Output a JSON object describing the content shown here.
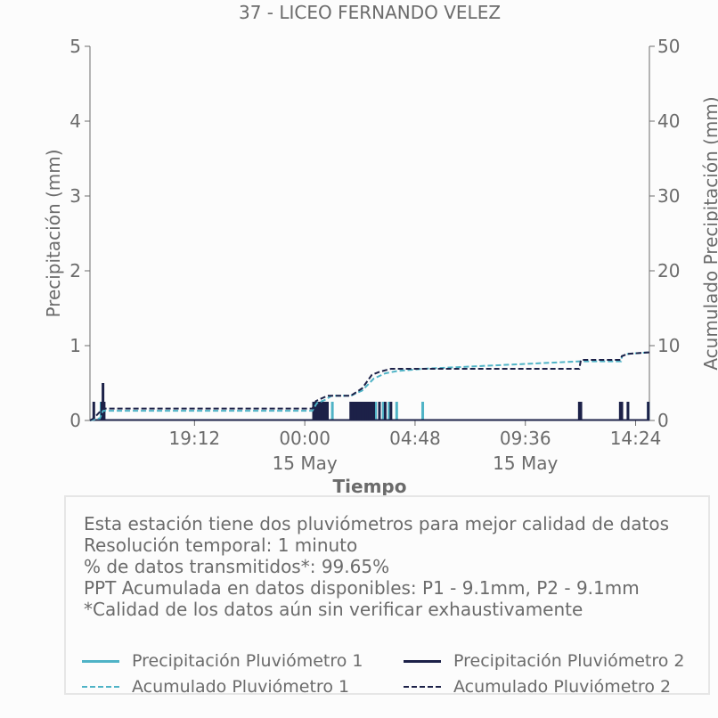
{
  "chart_data": {
    "type": "line",
    "title": "37 - LICEO FERNANDO VELEZ",
    "xlabel": "Tiempo",
    "ylabel_left": "Precipitación (mm)",
    "ylabel_right": "Acumulado Precipitación (mm)",
    "ylim_left": [
      0,
      5
    ],
    "ylim_right": [
      0,
      50
    ],
    "yticks_left": [
      "0",
      "1",
      "2",
      "3",
      "4",
      "5"
    ],
    "yticks_right": [
      "0",
      "10",
      "20",
      "30",
      "40",
      "50"
    ],
    "xlim": [
      "2024-05-14T14:39",
      "2024-05-15T15:00"
    ],
    "xticks": [
      {
        "t": "2024-05-14T19:12",
        "label": "19:12",
        "sublabel": ""
      },
      {
        "t": "2024-05-15T00:00",
        "label": "00:00",
        "sublabel": "15 May"
      },
      {
        "t": "2024-05-15T04:48",
        "label": "04:48",
        "sublabel": ""
      },
      {
        "t": "2024-05-15T09:36",
        "label": "09:36",
        "sublabel": "15 May"
      },
      {
        "t": "2024-05-15T14:24",
        "label": "14:24",
        "sublabel": ""
      }
    ],
    "grid": false,
    "colors": {
      "p1": "#4fb3c6",
      "p2": "#1c2148",
      "axis": "#6b6b6b",
      "text": "#6b6b6b"
    },
    "series": [
      {
        "name": "Precipitación Pluviómetro 1",
        "axis": "left",
        "style": "bars",
        "color": "#4fb3c6",
        "points": [
          [
            "2024-05-14T15:08",
            0.25
          ],
          [
            "2024-05-14T15:13",
            0.25
          ],
          [
            "2024-05-15T00:31",
            0.25
          ],
          [
            "2024-05-15T01:12",
            0.25
          ],
          [
            "2024-05-15T02:32",
            0.25
          ],
          [
            "2024-05-15T02:38",
            0.25
          ],
          [
            "2024-05-15T02:45",
            0.25
          ],
          [
            "2024-05-15T02:52",
            0.25
          ],
          [
            "2024-05-15T03:05",
            0.25
          ],
          [
            "2024-05-15T03:25",
            0.25
          ],
          [
            "2024-05-15T03:40",
            0.25
          ],
          [
            "2024-05-15T04:00",
            0.25
          ],
          [
            "2024-05-15T05:08",
            0.25
          ],
          [
            "2024-05-15T11:59",
            0.25
          ],
          [
            "2024-05-15T13:46",
            0.25
          ],
          [
            "2024-05-15T14:04",
            0.25
          ],
          [
            "2024-05-15T14:57",
            0.25
          ]
        ]
      },
      {
        "name": "Precipitación Pluviómetro 2",
        "axis": "left",
        "style": "bars",
        "color": "#1c2148",
        "points": [
          [
            "2024-05-14T14:49",
            0.25
          ],
          [
            "2024-05-14T15:10",
            0.25
          ],
          [
            "2024-05-14T15:13",
            0.5
          ],
          [
            "2024-05-14T15:16",
            0.25
          ],
          [
            "2024-05-15T00:23",
            0.25
          ],
          [
            "2024-05-15T00:29",
            0.25
          ],
          [
            "2024-05-15T00:35",
            0.25
          ],
          [
            "2024-05-15T00:41",
            0.25
          ],
          [
            "2024-05-15T00:47",
            0.25
          ],
          [
            "2024-05-15T00:53",
            0.25
          ],
          [
            "2024-05-15T00:59",
            0.25
          ],
          [
            "2024-05-15T02:00",
            0.25
          ],
          [
            "2024-05-15T02:05",
            0.25
          ],
          [
            "2024-05-15T02:10",
            0.25
          ],
          [
            "2024-05-15T02:15",
            0.25
          ],
          [
            "2024-05-15T02:20",
            0.25
          ],
          [
            "2024-05-15T02:25",
            0.25
          ],
          [
            "2024-05-15T02:30",
            0.25
          ],
          [
            "2024-05-15T02:35",
            0.25
          ],
          [
            "2024-05-15T02:40",
            0.25
          ],
          [
            "2024-05-15T02:45",
            0.25
          ],
          [
            "2024-05-15T02:50",
            0.25
          ],
          [
            "2024-05-15T02:55",
            0.25
          ],
          [
            "2024-05-15T03:00",
            0.25
          ],
          [
            "2024-05-15T03:15",
            0.25
          ],
          [
            "2024-05-15T03:30",
            0.25
          ],
          [
            "2024-05-15T03:45",
            0.25
          ],
          [
            "2024-05-15T11:57",
            0.25
          ],
          [
            "2024-05-15T12:01",
            0.25
          ],
          [
            "2024-05-15T13:44",
            0.25
          ],
          [
            "2024-05-15T13:48",
            0.25
          ],
          [
            "2024-05-15T14:04",
            0.25
          ],
          [
            "2024-05-15T14:57",
            0.25
          ]
        ]
      },
      {
        "name": "Acumulado Pluviómetro 1",
        "axis": "right",
        "style": "dashed-step",
        "color": "#4fb3c6",
        "points": [
          [
            "2024-05-14T14:39",
            0
          ],
          [
            "2024-05-14T15:05",
            0.3
          ],
          [
            "2024-05-14T15:13",
            1.3
          ],
          [
            "2024-05-15T00:20",
            1.3
          ],
          [
            "2024-05-15T00:31",
            2.3
          ],
          [
            "2024-05-15T00:55",
            2.8
          ],
          [
            "2024-05-15T01:10",
            3.3
          ],
          [
            "2024-05-15T02:00",
            3.3
          ],
          [
            "2024-05-15T02:30",
            4.0
          ],
          [
            "2024-05-15T03:00",
            5.6
          ],
          [
            "2024-05-15T03:30",
            6.3
          ],
          [
            "2024-05-15T04:00",
            6.6
          ],
          [
            "2024-05-15T05:08",
            6.9
          ],
          [
            "2024-05-15T11:59",
            7.9
          ],
          [
            "2024-05-15T13:46",
            7.9
          ],
          [
            "2024-05-15T13:48",
            8.6
          ],
          [
            "2024-05-15T14:04",
            8.9
          ],
          [
            "2024-05-15T14:57",
            9.1
          ]
        ]
      },
      {
        "name": "Acumulado Pluviómetro 2",
        "axis": "right",
        "style": "dashed-step",
        "color": "#1c2148",
        "points": [
          [
            "2024-05-14T14:39",
            0
          ],
          [
            "2024-05-14T14:49",
            0.3
          ],
          [
            "2024-05-14T15:13",
            1.6
          ],
          [
            "2024-05-15T00:20",
            1.6
          ],
          [
            "2024-05-15T00:29",
            2.6
          ],
          [
            "2024-05-15T00:59",
            3.3
          ],
          [
            "2024-05-15T02:00",
            3.3
          ],
          [
            "2024-05-15T02:30",
            4.3
          ],
          [
            "2024-05-15T02:55",
            6.1
          ],
          [
            "2024-05-15T03:15",
            6.5
          ],
          [
            "2024-05-15T03:45",
            6.9
          ],
          [
            "2024-05-15T11:57",
            6.9
          ],
          [
            "2024-05-15T12:01",
            8.1
          ],
          [
            "2024-05-15T13:44",
            8.1
          ],
          [
            "2024-05-15T13:48",
            8.6
          ],
          [
            "2024-05-15T14:04",
            8.9
          ],
          [
            "2024-05-15T14:57",
            9.1
          ]
        ]
      }
    ]
  },
  "info": {
    "lines": [
      "Esta estación tiene dos pluviómetros para mejor calidad de datos",
      "Resolución temporal: 1 minuto",
      "% de datos transmitidos*: 99.65%",
      "PPT Acumulada en datos disponibles: P1 - 9.1mm, P2 - 9.1mm",
      "*Calidad de los datos aún sin verificar exhaustivamente"
    ]
  },
  "legend": {
    "items": [
      {
        "label": "Precipitación Pluviómetro 1",
        "color": "#4fb3c6",
        "style": "solid"
      },
      {
        "label": "Precipitación Pluviómetro 2",
        "color": "#1c2148",
        "style": "solid"
      },
      {
        "label": "Acumulado Pluviómetro 1",
        "color": "#4fb3c6",
        "style": "dashed"
      },
      {
        "label": "Acumulado Pluviómetro 2",
        "color": "#1c2148",
        "style": "dashed"
      }
    ]
  }
}
